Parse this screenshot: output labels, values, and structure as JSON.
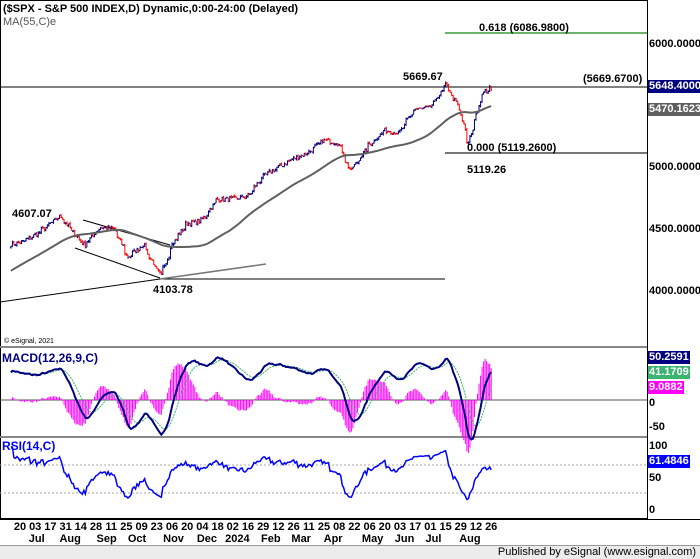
{
  "header": {
    "title": "($SPX - S&P 500 INDEX,D) Dynamic,0:00-24:00 (Delayed)",
    "ma_label": "MA(55,C)e",
    "copyright": "© eSignal, 2021"
  },
  "colors": {
    "up": "#000080",
    "down": "#ff0000",
    "ma": "#606060",
    "macd": "#000080",
    "signal": "#3cb371",
    "hist": "#ff00ff",
    "rsi": "#0000ff",
    "fib618": "#3a9a3a"
  },
  "annotations": {
    "high1": "4607.07",
    "low1": "4103.78",
    "high2": "5669.67",
    "low2": "5119.26",
    "fib618": "0.618 (6086.9800)",
    "fib0": "0.000 (5119.2600)",
    "high2_level": "(5669.6700)"
  },
  "price_axis": {
    "ticks": [
      "6000.0000",
      "5000.0000",
      "4500.0000",
      "4000.0000"
    ],
    "last_price": "5648.4000",
    "ma_value": "5470.1623"
  },
  "macd": {
    "label": "MACD(12,26,9,C)",
    "ticks": [
      "0",
      "-50"
    ],
    "macd_value": "50.2591",
    "signal_value": "41.1709",
    "hist_value": "9.0882"
  },
  "rsi": {
    "label": "RSI(14,C)",
    "ticks": [
      "100",
      "50",
      "0"
    ],
    "value": "61.4846"
  },
  "date_axis": {
    "days": [
      "20",
      "03",
      "17",
      "31",
      "14",
      "28",
      "11",
      "25",
      "09",
      "23",
      "06",
      "20",
      "04",
      "18",
      "02",
      "16",
      "29",
      "12",
      "26",
      "11",
      "25",
      "08",
      "22",
      "06",
      "20",
      "03",
      "17",
      "01",
      "15",
      "29",
      "12",
      "26"
    ],
    "months": [
      {
        "label": "Jul",
        "at": 1.1
      },
      {
        "label": "Aug",
        "at": 3.3
      },
      {
        "label": "Sep",
        "at": 5.7
      },
      {
        "label": "Oct",
        "at": 7.7
      },
      {
        "label": "Nov",
        "at": 10.1
      },
      {
        "label": "Dec",
        "at": 12.3
      },
      {
        "label": "2024",
        "at": 14.3
      },
      {
        "label": "Feb",
        "at": 16.5
      },
      {
        "label": "Mar",
        "at": 18.5
      },
      {
        "label": "Apr",
        "at": 20.6
      },
      {
        "label": "May",
        "at": 23.2
      },
      {
        "label": "Jun",
        "at": 25.3
      },
      {
        "label": "Jul",
        "at": 27.2
      },
      {
        "label": "Aug",
        "at": 29.6
      }
    ]
  },
  "footer": {
    "text": "Published by eSignal (www.esignal.com)"
  },
  "chart_data": {
    "type": "ohlc",
    "title": "($SPX - S&P 500 INDEX,D) Dynamic,0:00-24:00 (Delayed)",
    "ylim": [
      3900,
      6150
    ],
    "approx_closes": [
      [
        "2023-06-12",
        4380
      ],
      [
        "2023-06-20",
        4390
      ],
      [
        "2023-07-03",
        4450
      ],
      [
        "2023-07-17",
        4540
      ],
      [
        "2023-07-27",
        4607
      ],
      [
        "2023-08-07",
        4480
      ],
      [
        "2023-08-18",
        4370
      ],
      [
        "2023-09-01",
        4515
      ],
      [
        "2023-09-14",
        4505
      ],
      [
        "2023-09-27",
        4275
      ],
      [
        "2023-10-11",
        4375
      ],
      [
        "2023-10-27",
        4117
      ],
      [
        "2023-11-06",
        4365
      ],
      [
        "2023-11-20",
        4545
      ],
      [
        "2023-12-04",
        4570
      ],
      [
        "2023-12-18",
        4740
      ],
      [
        "2024-01-02",
        4745
      ],
      [
        "2024-01-16",
        4770
      ],
      [
        "2024-01-29",
        4925
      ],
      [
        "2024-02-12",
        5000
      ],
      [
        "2024-02-26",
        5070
      ],
      [
        "2024-03-11",
        5120
      ],
      [
        "2024-03-25",
        5220
      ],
      [
        "2024-04-08",
        5200
      ],
      [
        "2024-04-19",
        4967
      ],
      [
        "2024-05-06",
        5180
      ],
      [
        "2024-05-20",
        5300
      ],
      [
        "2024-06-03",
        5280
      ],
      [
        "2024-06-17",
        5470
      ],
      [
        "2024-07-01",
        5480
      ],
      [
        "2024-07-16",
        5667
      ],
      [
        "2024-07-29",
        5460
      ],
      [
        "2024-08-05",
        5186
      ],
      [
        "2024-08-12",
        5400
      ],
      [
        "2024-08-19",
        5600
      ],
      [
        "2024-08-27",
        5648
      ]
    ]
  }
}
